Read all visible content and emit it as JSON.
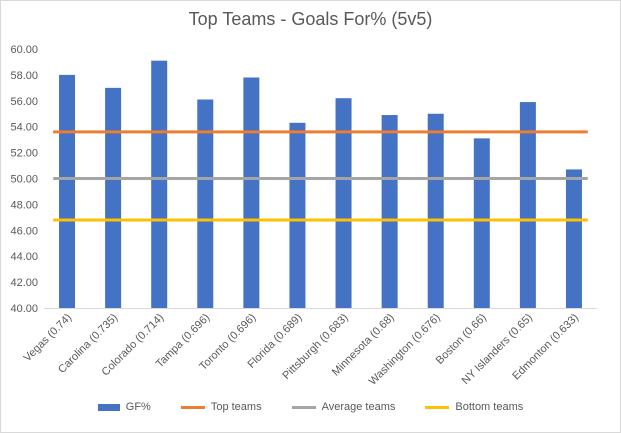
{
  "chart_data": {
    "type": "bar",
    "title": "Top Teams - Goals For% (5v5)",
    "xlabel": "",
    "ylabel": "",
    "ylim": [
      40,
      60
    ],
    "yticks": [
      "40.00",
      "42.00",
      "44.00",
      "46.00",
      "48.00",
      "50.00",
      "52.00",
      "54.00",
      "56.00",
      "58.00",
      "60.00"
    ],
    "categories": [
      "Vegas (0.74)",
      "Carolina (0.735)",
      "Colorado (0.714)",
      "Tampa (0.696)",
      "Toronto (0.696)",
      "Florida (0.689)",
      "Pittsburgh (0.683)",
      "Minnesota (0.68)",
      "Washington (0.676)",
      "Boston (0.66)",
      "NY Islanders (0.65)",
      "Edmonton (0.633)"
    ],
    "series": [
      {
        "name": "GF%",
        "kind": "bar",
        "color": "#4472c4",
        "values": [
          58.0,
          57.0,
          59.1,
          56.1,
          57.8,
          54.3,
          56.2,
          54.9,
          55.0,
          53.1,
          55.9,
          50.7
        ]
      },
      {
        "name": "Top teams",
        "kind": "line",
        "color": "#ed7d31",
        "values": [
          53.6,
          53.6,
          53.6,
          53.6,
          53.6,
          53.6,
          53.6,
          53.6,
          53.6,
          53.6,
          53.6,
          53.6
        ]
      },
      {
        "name": "Average teams",
        "kind": "line",
        "color": "#a5a5a5",
        "values": [
          50.0,
          50.0,
          50.0,
          50.0,
          50.0,
          50.0,
          50.0,
          50.0,
          50.0,
          50.0,
          50.0,
          50.0
        ]
      },
      {
        "name": "Bottom teams",
        "kind": "line",
        "color": "#ffc000",
        "values": [
          46.8,
          46.8,
          46.8,
          46.8,
          46.8,
          46.8,
          46.8,
          46.8,
          46.8,
          46.8,
          46.8,
          46.8
        ]
      }
    ],
    "grid": false,
    "legend_position": "bottom"
  }
}
